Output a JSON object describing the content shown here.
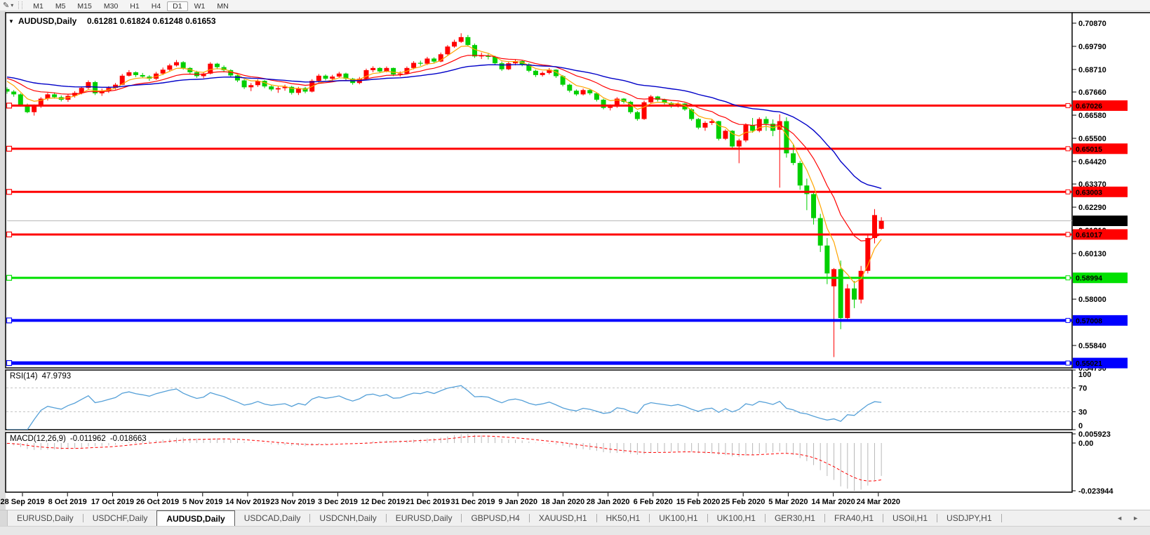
{
  "toolbar": {
    "drawing_icon_glyph": "✎",
    "dropdown_glyph": "▾",
    "timeframes": [
      "M1",
      "M5",
      "M15",
      "M30",
      "H1",
      "H4",
      "D1",
      "W1",
      "MN"
    ],
    "active_timeframe": "D1"
  },
  "chart": {
    "menu_arrow": "▼",
    "title_symbol": "AUDUSD,Daily",
    "title_ohlc": "0.61281 0.61824 0.61248 0.61653",
    "colors": {
      "up": "#FF0000",
      "down": "#00CF00",
      "ma_fast": "#FFA500",
      "ma_mid": "#FF0000",
      "ma_slow": "#0000C8"
    },
    "ma_periods": {
      "fast": 5,
      "mid": 13,
      "slow": 34
    },
    "ma_seed": 0.684,
    "seed_len": 40,
    "y_ticks": [
      "0.70870",
      "0.69790",
      "0.68710",
      "0.67660",
      "0.66580",
      "0.65500",
      "0.64420",
      "0.63370",
      "0.62290",
      "0.61210",
      "0.60130",
      "0.58000",
      "0.56920",
      "0.55840",
      "0.54790"
    ],
    "hlines": [
      {
        "value": 0.67026,
        "label": "0.67026",
        "color": "#FF0000",
        "text_color": "#FFFFFF",
        "width": 3
      },
      {
        "value": 0.65015,
        "label": "0.65015",
        "color": "#FF0000",
        "text_color": "#FFFFFF",
        "width": 3
      },
      {
        "value": 0.63003,
        "label": "0.63003",
        "color": "#FF0000",
        "text_color": "#FFFFFF",
        "width": 3
      },
      {
        "value": 0.61017,
        "label": "0.61017",
        "color": "#FF0000",
        "text_color": "#FFFFFF",
        "width": 3
      },
      {
        "value": 0.58994,
        "label": "0.58994",
        "color": "#00E000",
        "text_color": "#000000",
        "width": 3
      },
      {
        "value": 0.57008,
        "label": "0.57008",
        "color": "#0000FF",
        "text_color": "#FFFFFF",
        "width": 4
      },
      {
        "value": 0.55021,
        "label": "0.55021",
        "color": "#0000FF",
        "text_color": "#FFFFFF",
        "width": 5
      }
    ],
    "current_price": {
      "value": 0.61653,
      "label": "0.61653",
      "line_color": "#B9B9B9",
      "box_color": "#000000",
      "text_color": "#FFFFFF"
    },
    "candles": [
      [
        0.678,
        0.6788,
        0.6758,
        0.6768
      ],
      [
        0.6768,
        0.6775,
        0.6744,
        0.6755
      ],
      [
        0.6755,
        0.676,
        0.6698,
        0.6705
      ],
      [
        0.6705,
        0.6712,
        0.6667,
        0.6672
      ],
      [
        0.6672,
        0.6708,
        0.6656,
        0.67
      ],
      [
        0.67,
        0.6742,
        0.6692,
        0.6735
      ],
      [
        0.6735,
        0.6762,
        0.6726,
        0.6755
      ],
      [
        0.6755,
        0.6764,
        0.6735,
        0.6742
      ],
      [
        0.6742,
        0.675,
        0.6722,
        0.673
      ],
      [
        0.673,
        0.6755,
        0.672,
        0.6748
      ],
      [
        0.6748,
        0.677,
        0.674,
        0.6762
      ],
      [
        0.6762,
        0.6792,
        0.6755,
        0.6785
      ],
      [
        0.6785,
        0.682,
        0.678,
        0.6812
      ],
      [
        0.6812,
        0.6818,
        0.6752,
        0.676
      ],
      [
        0.676,
        0.6782,
        0.6748,
        0.677
      ],
      [
        0.677,
        0.6793,
        0.6762,
        0.6785
      ],
      [
        0.6785,
        0.6808,
        0.6778,
        0.68
      ],
      [
        0.68,
        0.685,
        0.6798,
        0.6842
      ],
      [
        0.6842,
        0.6868,
        0.6838,
        0.6858
      ],
      [
        0.6858,
        0.6862,
        0.6836,
        0.6845
      ],
      [
        0.6845,
        0.6855,
        0.683,
        0.6838
      ],
      [
        0.6838,
        0.6845,
        0.6818,
        0.6828
      ],
      [
        0.6828,
        0.686,
        0.6822,
        0.6852
      ],
      [
        0.6852,
        0.688,
        0.6845,
        0.687
      ],
      [
        0.687,
        0.6898,
        0.6862,
        0.689
      ],
      [
        0.689,
        0.6915,
        0.6885,
        0.6905
      ],
      [
        0.6905,
        0.691,
        0.687,
        0.6878
      ],
      [
        0.6878,
        0.6882,
        0.685,
        0.6858
      ],
      [
        0.6858,
        0.6865,
        0.6832,
        0.684
      ],
      [
        0.684,
        0.686,
        0.683,
        0.6852
      ],
      [
        0.6852,
        0.6905,
        0.6848,
        0.6898
      ],
      [
        0.6898,
        0.6902,
        0.6872,
        0.6882
      ],
      [
        0.6882,
        0.689,
        0.6858,
        0.6868
      ],
      [
        0.6868,
        0.6872,
        0.6835,
        0.6843
      ],
      [
        0.6843,
        0.6848,
        0.6812,
        0.682
      ],
      [
        0.682,
        0.6825,
        0.678,
        0.6788
      ],
      [
        0.6788,
        0.6808,
        0.677,
        0.6798
      ],
      [
        0.6798,
        0.6825,
        0.679,
        0.6818
      ],
      [
        0.6818,
        0.6822,
        0.6784,
        0.6792
      ],
      [
        0.6792,
        0.6798,
        0.677,
        0.6778
      ],
      [
        0.6778,
        0.6792,
        0.6762,
        0.6784
      ],
      [
        0.6784,
        0.68,
        0.6772,
        0.679
      ],
      [
        0.679,
        0.6795,
        0.6754,
        0.6762
      ],
      [
        0.6762,
        0.679,
        0.6752,
        0.6784
      ],
      [
        0.6784,
        0.679,
        0.676,
        0.6768
      ],
      [
        0.6768,
        0.6826,
        0.6764,
        0.6818
      ],
      [
        0.6818,
        0.685,
        0.681,
        0.6842
      ],
      [
        0.6842,
        0.6848,
        0.682,
        0.6828
      ],
      [
        0.6828,
        0.6846,
        0.6818,
        0.6838
      ],
      [
        0.6838,
        0.686,
        0.683,
        0.6852
      ],
      [
        0.6852,
        0.6856,
        0.682,
        0.6828
      ],
      [
        0.6828,
        0.6832,
        0.68,
        0.6808
      ],
      [
        0.6808,
        0.6836,
        0.6802,
        0.6828
      ],
      [
        0.6828,
        0.6875,
        0.6822,
        0.6868
      ],
      [
        0.6868,
        0.6886,
        0.6858,
        0.6878
      ],
      [
        0.6878,
        0.6882,
        0.6855,
        0.6862
      ],
      [
        0.6862,
        0.6885,
        0.6858,
        0.6878
      ],
      [
        0.6878,
        0.688,
        0.684,
        0.6848
      ],
      [
        0.6848,
        0.6862,
        0.6838,
        0.6852
      ],
      [
        0.6852,
        0.6885,
        0.6848,
        0.6878
      ],
      [
        0.6878,
        0.691,
        0.6872,
        0.6902
      ],
      [
        0.6902,
        0.6912,
        0.6888,
        0.6898
      ],
      [
        0.6898,
        0.693,
        0.6892,
        0.6922
      ],
      [
        0.6922,
        0.6928,
        0.69,
        0.6908
      ],
      [
        0.6908,
        0.695,
        0.6905,
        0.6942
      ],
      [
        0.6942,
        0.6985,
        0.6938,
        0.6978
      ],
      [
        0.6978,
        0.701,
        0.6972,
        0.7
      ],
      [
        0.7,
        0.704,
        0.6995,
        0.7022
      ],
      [
        0.7022,
        0.7032,
        0.6978,
        0.6985
      ],
      [
        0.6985,
        0.6992,
        0.6925,
        0.6932
      ],
      [
        0.6932,
        0.695,
        0.692,
        0.6936
      ],
      [
        0.6936,
        0.6944,
        0.6918,
        0.693
      ],
      [
        0.693,
        0.6935,
        0.6892,
        0.69
      ],
      [
        0.69,
        0.6908,
        0.6864,
        0.6872
      ],
      [
        0.6872,
        0.6908,
        0.6868,
        0.69
      ],
      [
        0.69,
        0.6918,
        0.689,
        0.691
      ],
      [
        0.691,
        0.6915,
        0.6886,
        0.6895
      ],
      [
        0.6895,
        0.69,
        0.6858,
        0.6865
      ],
      [
        0.6865,
        0.687,
        0.6836,
        0.6845
      ],
      [
        0.6845,
        0.6862,
        0.6838,
        0.6855
      ],
      [
        0.6855,
        0.6878,
        0.6848,
        0.687
      ],
      [
        0.687,
        0.6872,
        0.6832,
        0.684
      ],
      [
        0.684,
        0.6845,
        0.6792,
        0.68
      ],
      [
        0.68,
        0.6805,
        0.6764,
        0.6772
      ],
      [
        0.6772,
        0.6778,
        0.6748,
        0.6755
      ],
      [
        0.6755,
        0.6782,
        0.675,
        0.6775
      ],
      [
        0.6775,
        0.678,
        0.6752,
        0.676
      ],
      [
        0.676,
        0.6765,
        0.6722,
        0.673
      ],
      [
        0.673,
        0.6735,
        0.6685,
        0.6692
      ],
      [
        0.6692,
        0.6708,
        0.668,
        0.6698
      ],
      [
        0.6698,
        0.6742,
        0.6692,
        0.6735
      ],
      [
        0.6735,
        0.6738,
        0.6712,
        0.672
      ],
      [
        0.672,
        0.6725,
        0.6664,
        0.6672
      ],
      [
        0.6672,
        0.6678,
        0.6632,
        0.664
      ],
      [
        0.664,
        0.6726,
        0.6636,
        0.6718
      ],
      [
        0.6718,
        0.6752,
        0.6712,
        0.6745
      ],
      [
        0.6745,
        0.6748,
        0.6722,
        0.673
      ],
      [
        0.673,
        0.6735,
        0.6708,
        0.6715
      ],
      [
        0.6715,
        0.672,
        0.6692,
        0.67
      ],
      [
        0.67,
        0.6718,
        0.6694,
        0.6712
      ],
      [
        0.6712,
        0.6715,
        0.6678,
        0.6685
      ],
      [
        0.6685,
        0.669,
        0.6632,
        0.664
      ],
      [
        0.664,
        0.6645,
        0.6592,
        0.66
      ],
      [
        0.66,
        0.663,
        0.6585,
        0.6622
      ],
      [
        0.6622,
        0.6638,
        0.6612,
        0.663
      ],
      [
        0.663,
        0.6632,
        0.654,
        0.6548
      ],
      [
        0.6548,
        0.6592,
        0.6542,
        0.6585
      ],
      [
        0.6585,
        0.6588,
        0.6505,
        0.6512
      ],
      [
        0.6512,
        0.6548,
        0.6434,
        0.654
      ],
      [
        0.654,
        0.662,
        0.6532,
        0.6612
      ],
      [
        0.6612,
        0.6645,
        0.6576,
        0.6585
      ],
      [
        0.6585,
        0.6648,
        0.6578,
        0.664
      ],
      [
        0.664,
        0.6652,
        0.6585,
        0.6618
      ],
      [
        0.6618,
        0.6638,
        0.656,
        0.6585
      ],
      [
        0.659,
        0.6662,
        0.632,
        0.663
      ],
      [
        0.663,
        0.6648,
        0.646,
        0.648
      ],
      [
        0.648,
        0.652,
        0.6425,
        0.6435
      ],
      [
        0.6435,
        0.6445,
        0.631,
        0.633
      ],
      [
        0.633,
        0.6362,
        0.6215,
        0.629
      ],
      [
        0.629,
        0.6305,
        0.6148,
        0.6178
      ],
      [
        0.6178,
        0.6198,
        0.602,
        0.605
      ],
      [
        0.605,
        0.6085,
        0.587,
        0.592
      ],
      [
        0.586,
        0.5945,
        0.553,
        0.594
      ],
      [
        0.594,
        0.598,
        0.566,
        0.5712
      ],
      [
        0.5712,
        0.587,
        0.5705,
        0.585
      ],
      [
        0.585,
        0.5885,
        0.5758,
        0.5798
      ],
      [
        0.5798,
        0.5955,
        0.578,
        0.5932
      ],
      [
        0.5932,
        0.61,
        0.592,
        0.6085
      ],
      [
        0.6085,
        0.622,
        0.606,
        0.6192
      ],
      [
        0.61281,
        0.61824,
        0.61248,
        0.61653
      ]
    ]
  },
  "rsi": {
    "name": "RSI(14)",
    "value": "47.9793",
    "period": 14,
    "axis": [
      "100",
      "70",
      "30",
      "0"
    ],
    "levels": [
      70,
      30
    ],
    "line_color": "#55A0D8",
    "level_color": "#C4C4C4"
  },
  "macd": {
    "name": "MACD(12,26,9)",
    "macd_value": "-0.011962",
    "signal_value": "-0.018663",
    "fast": 12,
    "slow": 26,
    "signal": 9,
    "axis_max": "0.005923",
    "axis_zero": "0.00",
    "axis_min": "-0.023944",
    "hist_color": "#B8B8B8",
    "signal_color": "#FF0000"
  },
  "x_axis": {
    "dates": [
      "28 Sep 2019",
      "8 Oct 2019",
      "17 Oct 2019",
      "26 Oct 2019",
      "5 Nov 2019",
      "14 Nov 2019",
      "23 Nov 2019",
      "3 Dec 2019",
      "12 Dec 2019",
      "21 Dec 2019",
      "31 Dec 2019",
      "9 Jan 2020",
      "18 Jan 2020",
      "28 Jan 2020",
      "6 Feb 2020",
      "15 Feb 2020",
      "25 Feb 2020",
      "5 Mar 2020",
      "14 Mar 2020",
      "24 Mar 2020"
    ]
  },
  "tabs": {
    "items": [
      "EURUSD,Daily",
      "USDCHF,Daily",
      "AUDUSD,Daily",
      "USDCAD,Daily",
      "USDCNH,Daily",
      "EURUSD,Daily",
      "GBPUSD,H4",
      "XAUUSD,H1",
      "HK50,H1",
      "UK100,H1",
      "UK100,H1",
      "GER30,H1",
      "FRA40,H1",
      "USOil,H1",
      "USDJPY,H1"
    ],
    "active_index": 2,
    "nav_left": "◄",
    "nav_right": "►"
  }
}
